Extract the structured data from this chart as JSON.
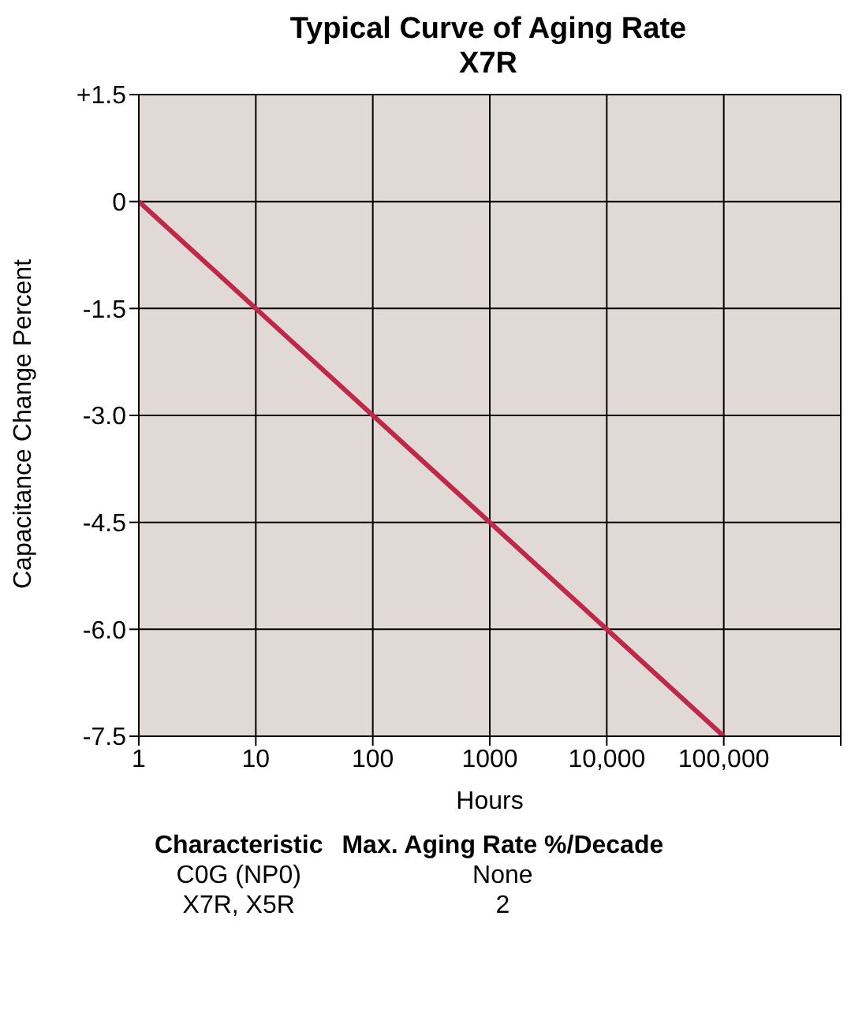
{
  "chart_data": {
    "type": "line",
    "title": "Typical Curve of Aging Rate",
    "subtitle": "X7R",
    "xlabel": "Hours",
    "ylabel": "Capacitance Change Percent",
    "x": [
      1,
      100000
    ],
    "series": [
      {
        "color": "#c0284a",
        "values": [
          0,
          -7.5
        ]
      }
    ],
    "log": "x",
    "grid": true,
    "xlim": [
      1,
      1000000
    ],
    "xticks": [
      1,
      10,
      100,
      1000,
      {
        "value": 10000,
        "label": "10,000"
      },
      {
        "value": 100000,
        "label": "100,000"
      },
      {
        "value": 1000000,
        "label": null
      }
    ],
    "ylim": [
      -7.5,
      1.5
    ],
    "yticks": [
      {
        "value": 1.5,
        "label": "+1.5"
      },
      0,
      -1.5,
      {
        "value": -3,
        "label": "-3.0"
      },
      -4.5,
      {
        "value": -6,
        "label": "-6.0"
      },
      -7.5
    ],
    "annotations": [
      "Characteristic",
      "Max. Aging Rate %/Decade",
      "C0G (NP0)",
      "None",
      "X7R, X5R",
      "2"
    ]
  }
}
